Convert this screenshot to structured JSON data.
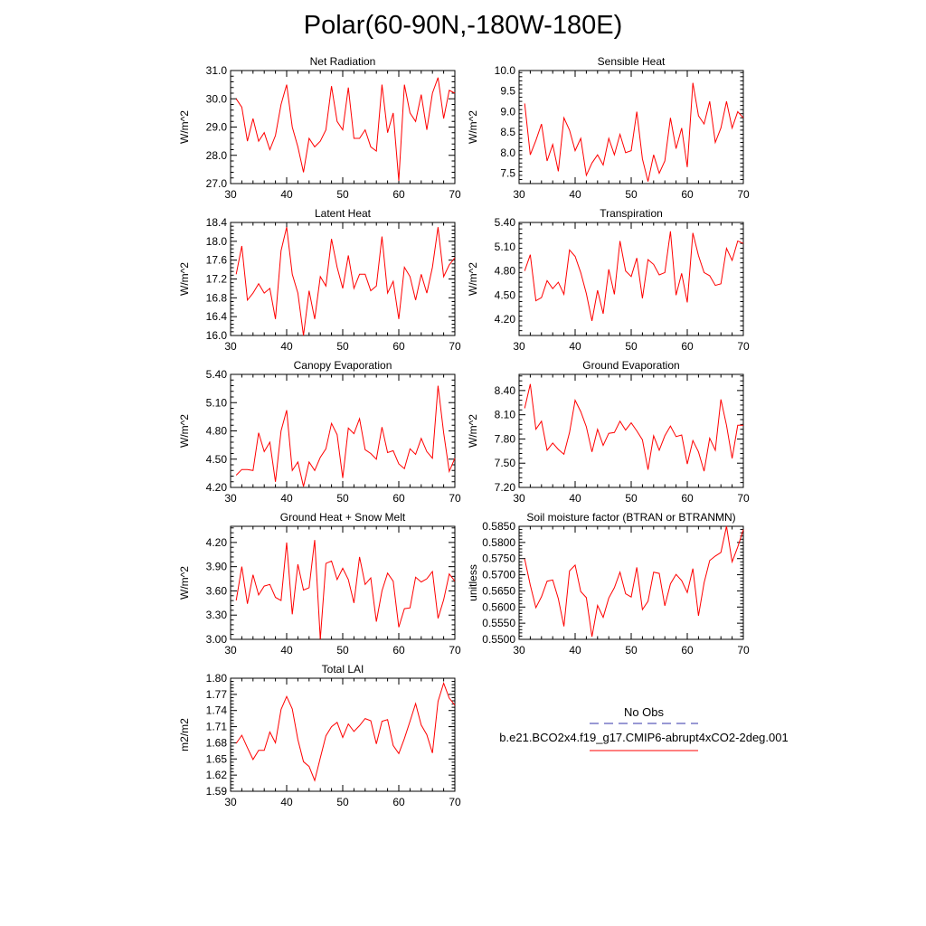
{
  "title": "Polar(60-90N,-180W-180E)",
  "legend": {
    "entries": [
      {
        "label": "No Obs",
        "color": "#3333aa",
        "style": "dashed"
      },
      {
        "label": "b.e21.BCO2x4.f19_g17.CMIP6-abrupt4xCO2-2deg.001",
        "color": "#ff0000",
        "style": "solid"
      }
    ]
  },
  "chart_data": [
    {
      "type": "line",
      "title": "Net Radiation",
      "ylabel": "W/m^2",
      "xlim": [
        30,
        70
      ],
      "ylim": [
        27.0,
        31.0
      ],
      "xticks": [
        "30",
        "40",
        "50",
        "60",
        "70"
      ],
      "yticks": [
        "27.0",
        "28.0",
        "29.0",
        "30.0",
        "31.0"
      ],
      "x": [
        31,
        32,
        33,
        34,
        35,
        36,
        37,
        38,
        39,
        40,
        41,
        42,
        43,
        44,
        45,
        46,
        47,
        48,
        49,
        50,
        51,
        52,
        53,
        54,
        55,
        56,
        57,
        58,
        59,
        60,
        61,
        62,
        63,
        64,
        65,
        66,
        67,
        68,
        69,
        70
      ],
      "series": [
        {
          "color": "#ff0000",
          "values": [
            30.0,
            29.7,
            28.5,
            29.3,
            28.5,
            28.8,
            28.2,
            28.7,
            29.8,
            30.5,
            29.0,
            28.3,
            27.4,
            28.6,
            28.3,
            28.5,
            28.9,
            30.45,
            29.2,
            28.9,
            30.4,
            28.6,
            28.6,
            28.9,
            28.3,
            28.15,
            30.5,
            28.8,
            29.5,
            27.1,
            30.5,
            29.5,
            29.2,
            30.15,
            28.9,
            30.2,
            30.75,
            29.3,
            30.3,
            30.2
          ]
        }
      ]
    },
    {
      "type": "line",
      "title": "Sensible Heat",
      "ylabel": "W/m^2",
      "xlim": [
        30,
        70
      ],
      "ylim": [
        7.25,
        10.0
      ],
      "xticks": [
        "30",
        "40",
        "50",
        "60",
        "70"
      ],
      "yticks": [
        "7.5",
        "8.0",
        "8.5",
        "9.0",
        "9.5",
        "10.0"
      ],
      "x": [
        31,
        32,
        33,
        34,
        35,
        36,
        37,
        38,
        39,
        40,
        41,
        42,
        43,
        44,
        45,
        46,
        47,
        48,
        49,
        50,
        51,
        52,
        53,
        54,
        55,
        56,
        57,
        58,
        59,
        60,
        61,
        62,
        63,
        64,
        65,
        66,
        67,
        68,
        69,
        70
      ],
      "series": [
        {
          "color": "#ff0000",
          "values": [
            9.2,
            7.95,
            8.3,
            8.7,
            7.8,
            8.2,
            7.55,
            8.85,
            8.55,
            8.05,
            8.35,
            7.45,
            7.75,
            7.95,
            7.7,
            8.35,
            7.95,
            8.45,
            8.0,
            8.05,
            9.0,
            7.85,
            7.3,
            7.95,
            7.5,
            7.8,
            8.85,
            8.1,
            8.6,
            7.65,
            9.7,
            8.9,
            8.7,
            9.25,
            8.25,
            8.6,
            9.25,
            8.6,
            9.0,
            8.85
          ]
        }
      ]
    },
    {
      "type": "line",
      "title": "Latent Heat",
      "ylabel": "W/m^2",
      "xlim": [
        30,
        70
      ],
      "ylim": [
        16.0,
        18.4
      ],
      "xticks": [
        "30",
        "40",
        "50",
        "60",
        "70"
      ],
      "yticks": [
        "16.0",
        "16.4",
        "16.8",
        "17.2",
        "17.6",
        "18.0",
        "18.4"
      ],
      "x": [
        31,
        32,
        33,
        34,
        35,
        36,
        37,
        38,
        39,
        40,
        41,
        42,
        43,
        44,
        45,
        46,
        47,
        48,
        49,
        50,
        51,
        52,
        53,
        54,
        55,
        56,
        57,
        58,
        59,
        60,
        61,
        62,
        63,
        64,
        65,
        66,
        67,
        68,
        69,
        70
      ],
      "series": [
        {
          "color": "#ff0000",
          "values": [
            17.3,
            17.9,
            16.75,
            16.9,
            17.1,
            16.9,
            17.0,
            16.35,
            17.8,
            18.3,
            17.3,
            16.9,
            16.0,
            16.95,
            16.35,
            17.25,
            17.05,
            18.05,
            17.45,
            17.0,
            17.7,
            17.0,
            17.3,
            17.3,
            16.95,
            17.05,
            18.1,
            16.9,
            17.15,
            16.35,
            17.45,
            17.25,
            16.75,
            17.3,
            16.9,
            17.45,
            18.3,
            17.25,
            17.5,
            17.65
          ]
        }
      ]
    },
    {
      "type": "line",
      "title": "Transpiration",
      "ylabel": "W/m^2",
      "xlim": [
        30,
        70
      ],
      "ylim": [
        4.0,
        5.4
      ],
      "xticks": [
        "30",
        "40",
        "50",
        "60",
        "70"
      ],
      "yticks": [
        "4.20",
        "4.50",
        "4.80",
        "5.10",
        "5.40"
      ],
      "x": [
        31,
        32,
        33,
        34,
        35,
        36,
        37,
        38,
        39,
        40,
        41,
        42,
        43,
        44,
        45,
        46,
        47,
        48,
        49,
        50,
        51,
        52,
        53,
        54,
        55,
        56,
        57,
        58,
        59,
        60,
        61,
        62,
        63,
        64,
        65,
        66,
        67,
        68,
        69,
        70
      ],
      "series": [
        {
          "color": "#ff0000",
          "values": [
            4.8,
            5.0,
            4.43,
            4.47,
            4.68,
            4.58,
            4.66,
            4.51,
            5.06,
            4.98,
            4.78,
            4.52,
            4.18,
            4.56,
            4.27,
            4.82,
            4.51,
            5.17,
            4.8,
            4.73,
            4.96,
            4.46,
            4.94,
            4.88,
            4.75,
            4.78,
            5.29,
            4.5,
            4.77,
            4.41,
            5.27,
            4.99,
            4.78,
            4.74,
            4.62,
            4.64,
            5.08,
            4.93,
            5.17,
            5.14
          ]
        }
      ]
    },
    {
      "type": "line",
      "title": "Canopy Evaporation",
      "ylabel": "W/m^2",
      "xlim": [
        30,
        70
      ],
      "ylim": [
        4.2,
        5.4
      ],
      "xticks": [
        "30",
        "40",
        "50",
        "60",
        "70"
      ],
      "yticks": [
        "4.20",
        "4.50",
        "4.80",
        "5.10",
        "5.40"
      ],
      "x": [
        31,
        32,
        33,
        34,
        35,
        36,
        37,
        38,
        39,
        40,
        41,
        42,
        43,
        44,
        45,
        46,
        47,
        48,
        49,
        50,
        51,
        52,
        53,
        54,
        55,
        56,
        57,
        58,
        59,
        60,
        61,
        62,
        63,
        64,
        65,
        66,
        67,
        68,
        69,
        70
      ],
      "series": [
        {
          "color": "#ff0000",
          "values": [
            4.33,
            4.39,
            4.39,
            4.38,
            4.78,
            4.58,
            4.68,
            4.26,
            4.8,
            5.02,
            4.38,
            4.47,
            4.21,
            4.47,
            4.38,
            4.52,
            4.61,
            4.88,
            4.76,
            4.3,
            4.83,
            4.77,
            4.93,
            4.6,
            4.56,
            4.5,
            4.84,
            4.57,
            4.59,
            4.45,
            4.4,
            4.61,
            4.55,
            4.72,
            4.58,
            4.51,
            5.28,
            4.78,
            4.37,
            4.51
          ]
        }
      ]
    },
    {
      "type": "line",
      "title": "Ground Evaporation",
      "ylabel": "W/m^2",
      "xlim": [
        30,
        70
      ],
      "ylim": [
        7.2,
        8.6
      ],
      "xticks": [
        "30",
        "40",
        "50",
        "60",
        "70"
      ],
      "yticks": [
        "7.20",
        "7.50",
        "7.80",
        "8.10",
        "8.40"
      ],
      "x": [
        31,
        32,
        33,
        34,
        35,
        36,
        37,
        38,
        39,
        40,
        41,
        42,
        43,
        44,
        45,
        46,
        47,
        48,
        49,
        50,
        51,
        52,
        53,
        54,
        55,
        56,
        57,
        58,
        59,
        60,
        61,
        62,
        63,
        64,
        65,
        66,
        67,
        68,
        69,
        70
      ],
      "series": [
        {
          "color": "#ff0000",
          "values": [
            8.18,
            8.48,
            7.92,
            8.02,
            7.66,
            7.75,
            7.67,
            7.61,
            7.88,
            8.28,
            8.14,
            7.95,
            7.64,
            7.92,
            7.72,
            7.87,
            7.88,
            8.02,
            7.91,
            8.0,
            7.9,
            7.79,
            7.42,
            7.84,
            7.66,
            7.84,
            7.96,
            7.83,
            7.85,
            7.49,
            7.78,
            7.64,
            7.4,
            7.81,
            7.66,
            8.29,
            7.97,
            7.56,
            7.97,
            7.97
          ]
        }
      ]
    },
    {
      "type": "line",
      "title": "Ground Heat + Snow Melt",
      "ylabel": "W/m^2",
      "xlim": [
        30,
        70
      ],
      "ylim": [
        3.0,
        4.4
      ],
      "xticks": [
        "30",
        "40",
        "50",
        "60",
        "70"
      ],
      "yticks": [
        "3.00",
        "3.30",
        "3.60",
        "3.90",
        "4.20"
      ],
      "x": [
        31,
        32,
        33,
        34,
        35,
        36,
        37,
        38,
        39,
        40,
        41,
        42,
        43,
        44,
        45,
        46,
        47,
        48,
        49,
        50,
        51,
        52,
        53,
        54,
        55,
        56,
        57,
        58,
        59,
        60,
        61,
        62,
        63,
        64,
        65,
        66,
        67,
        68,
        69,
        70
      ],
      "series": [
        {
          "color": "#ff0000",
          "values": [
            3.48,
            3.9,
            3.44,
            3.8,
            3.55,
            3.66,
            3.68,
            3.52,
            3.48,
            4.2,
            3.31,
            3.93,
            3.61,
            3.64,
            4.23,
            3.0,
            3.94,
            3.97,
            3.74,
            3.88,
            3.74,
            3.45,
            4.02,
            3.68,
            3.76,
            3.22,
            3.6,
            3.82,
            3.72,
            3.15,
            3.38,
            3.39,
            3.77,
            3.71,
            3.75,
            3.84,
            3.26,
            3.49,
            3.81,
            3.72
          ]
        }
      ]
    },
    {
      "type": "line",
      "title": "Soil moisture factor (BTRAN or BTRANMN)",
      "ylabel": "unitless",
      "xlim": [
        30,
        70
      ],
      "ylim": [
        0.55,
        0.585
      ],
      "xticks": [
        "30",
        "40",
        "50",
        "60",
        "70"
      ],
      "yticks": [
        "0.5500",
        "0.5550",
        "0.5600",
        "0.5650",
        "0.5700",
        "0.5750",
        "0.5800",
        "0.5850"
      ],
      "x": [
        31,
        32,
        33,
        34,
        35,
        36,
        37,
        38,
        39,
        40,
        41,
        42,
        43,
        44,
        45,
        46,
        47,
        48,
        49,
        50,
        51,
        52,
        53,
        54,
        55,
        56,
        57,
        58,
        59,
        60,
        61,
        62,
        63,
        64,
        65,
        66,
        67,
        68,
        69,
        70
      ],
      "series": [
        {
          "color": "#ff0000",
          "values": [
            0.5749,
            0.5668,
            0.5598,
            0.5632,
            0.568,
            0.5684,
            0.5626,
            0.554,
            0.5712,
            0.573,
            0.5648,
            0.5629,
            0.5508,
            0.5605,
            0.5568,
            0.5628,
            0.566,
            0.5708,
            0.5641,
            0.5631,
            0.5723,
            0.5592,
            0.5618,
            0.5708,
            0.5704,
            0.5604,
            0.5672,
            0.5701,
            0.5682,
            0.5645,
            0.5719,
            0.5573,
            0.5675,
            0.5744,
            0.5758,
            0.5769,
            0.585,
            0.574,
            0.5786,
            0.584
          ]
        }
      ]
    },
    {
      "type": "line",
      "title": "Total LAI",
      "ylabel": "m2/m2",
      "xlim": [
        30,
        70
      ],
      "ylim": [
        1.59,
        1.8
      ],
      "xticks": [
        "30",
        "40",
        "50",
        "60",
        "70"
      ],
      "yticks": [
        "1.59",
        "1.62",
        "1.65",
        "1.68",
        "1.71",
        "1.74",
        "1.77",
        "1.80"
      ],
      "x": [
        31,
        32,
        33,
        34,
        35,
        36,
        37,
        38,
        39,
        40,
        41,
        42,
        43,
        44,
        45,
        46,
        47,
        48,
        49,
        50,
        51,
        52,
        53,
        54,
        55,
        56,
        57,
        58,
        59,
        60,
        61,
        62,
        63,
        64,
        65,
        66,
        67,
        68,
        69,
        70
      ],
      "series": [
        {
          "color": "#ff0000",
          "values": [
            1.679,
            1.694,
            1.671,
            1.649,
            1.666,
            1.666,
            1.7,
            1.68,
            1.742,
            1.766,
            1.743,
            1.686,
            1.645,
            1.636,
            1.61,
            1.652,
            1.693,
            1.71,
            1.718,
            1.69,
            1.715,
            1.701,
            1.712,
            1.725,
            1.721,
            1.678,
            1.72,
            1.723,
            1.675,
            1.66,
            1.688,
            1.72,
            1.753,
            1.713,
            1.695,
            1.661,
            1.757,
            1.791,
            1.763,
            1.75
          ]
        }
      ]
    }
  ]
}
